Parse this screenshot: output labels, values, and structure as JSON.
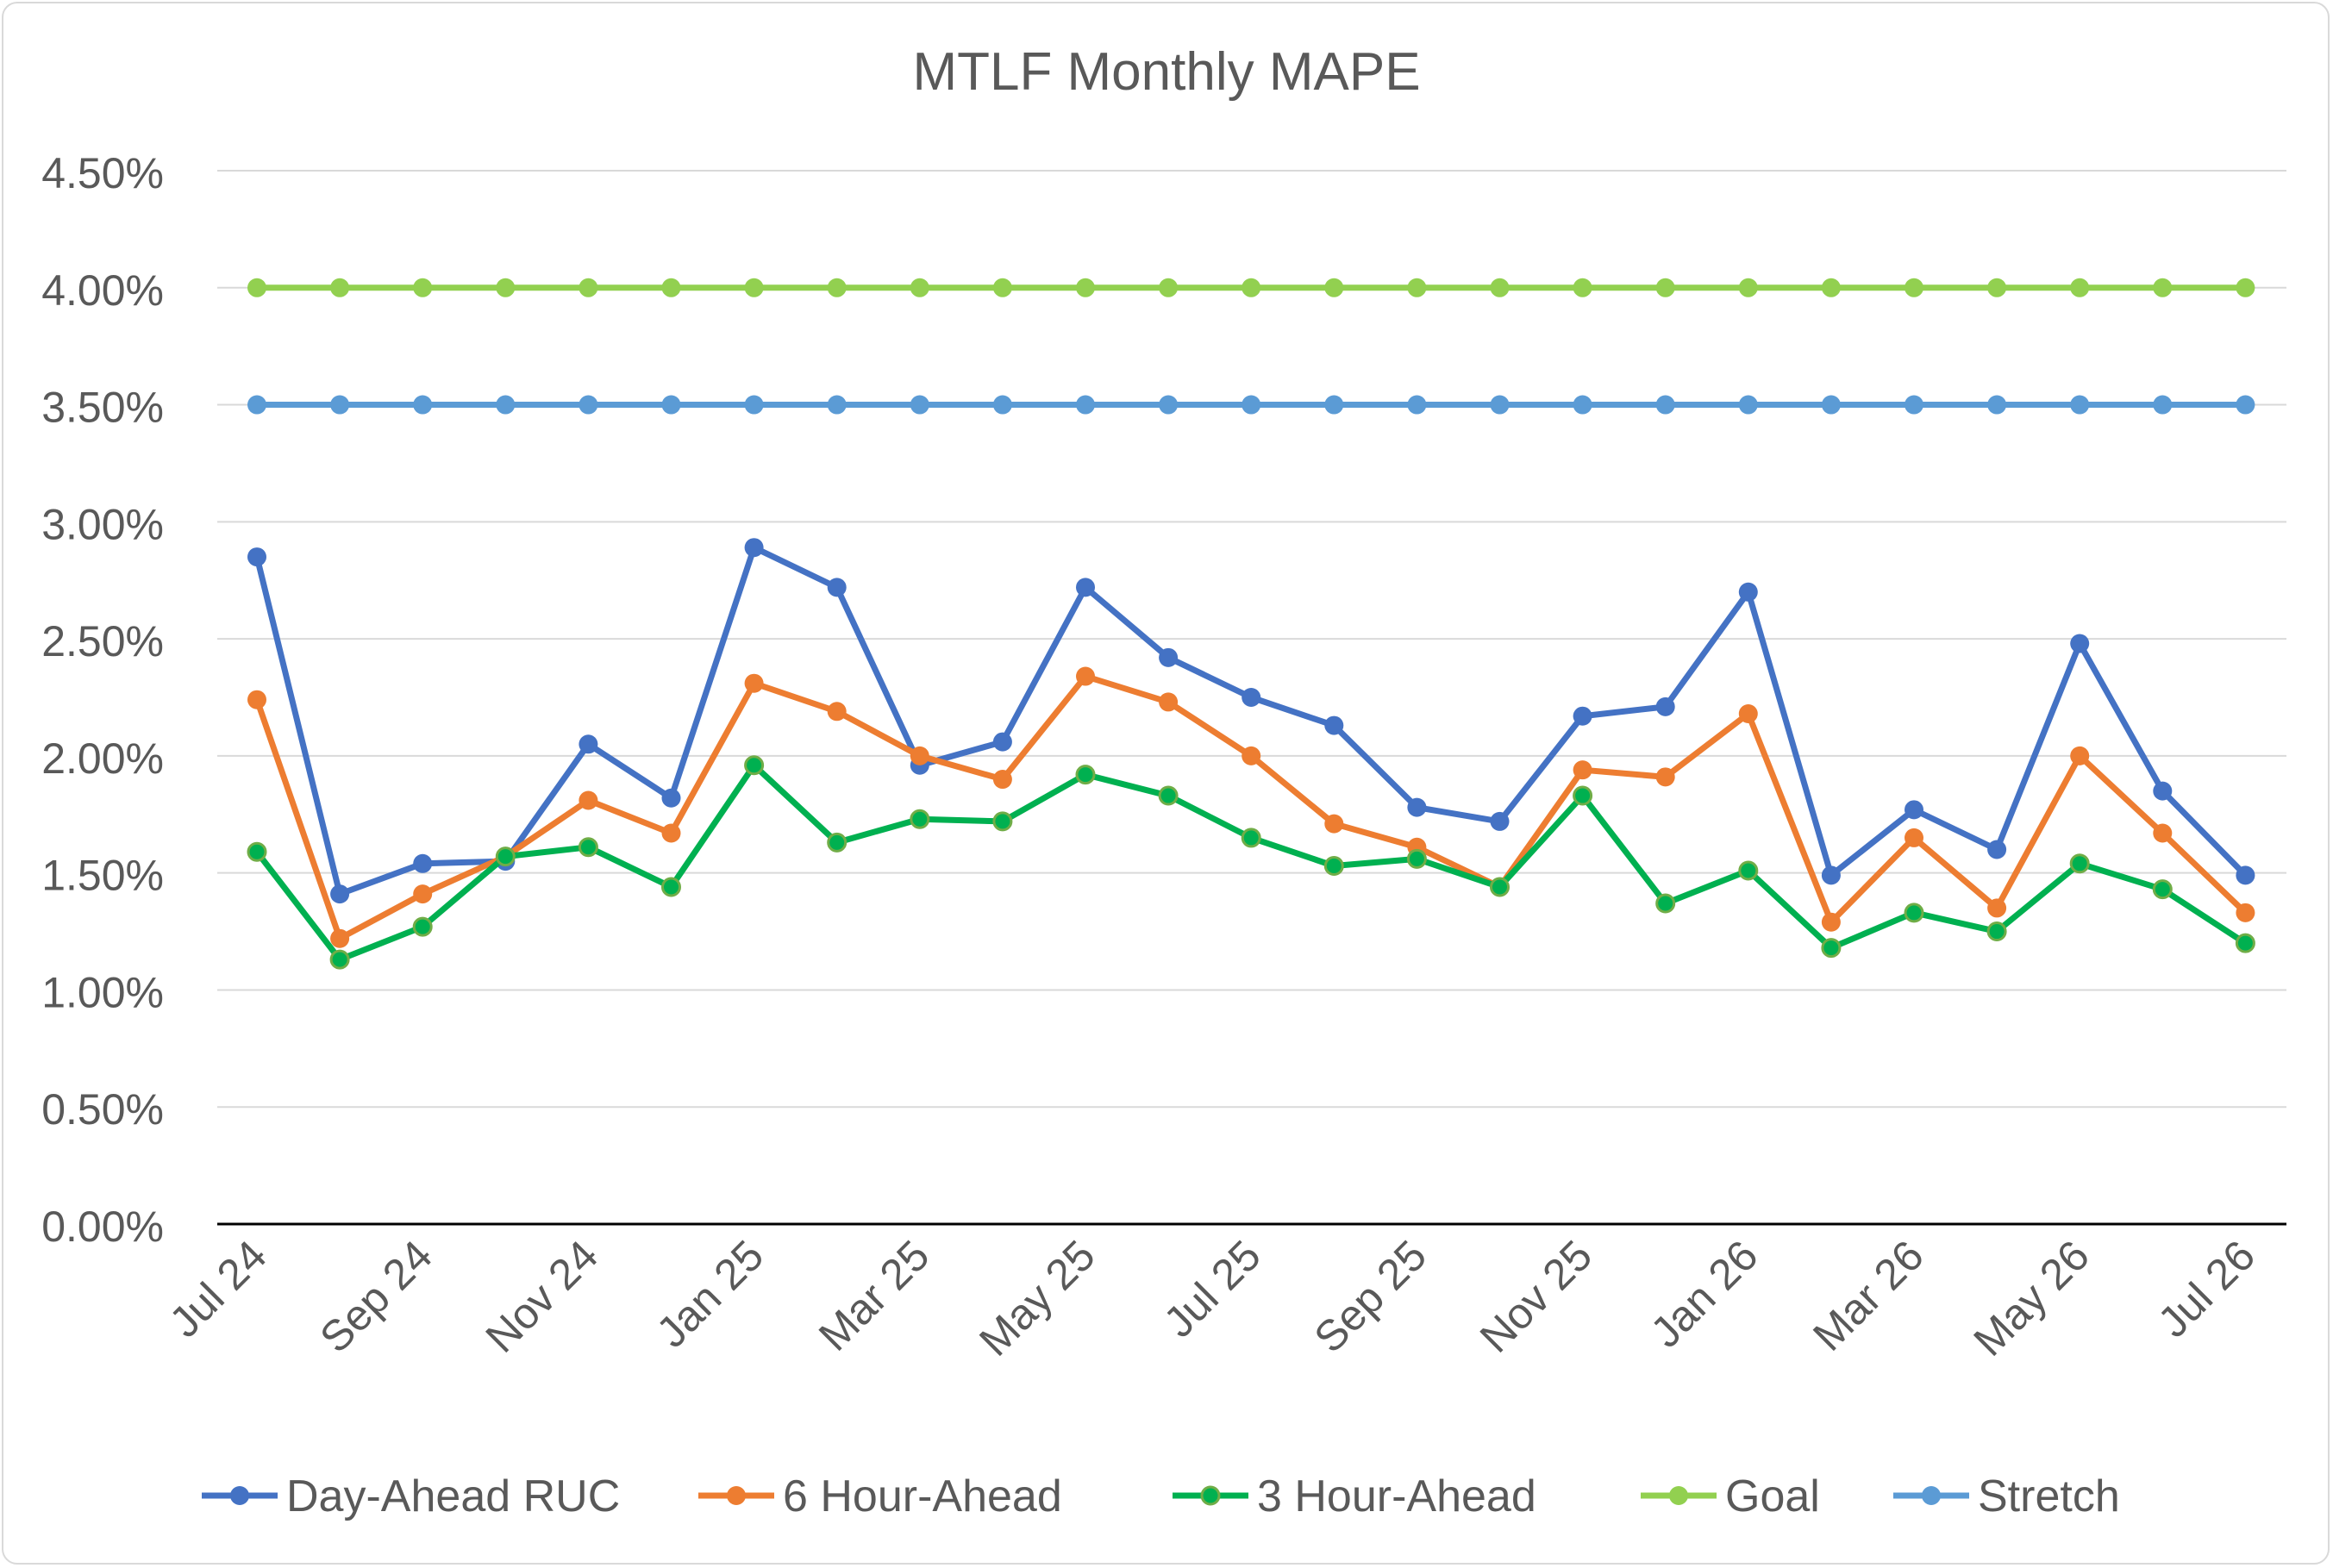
{
  "chart_data": {
    "type": "line",
    "title": "MTLF Monthly MAPE",
    "xlabel": "",
    "ylabel": "",
    "ylim": [
      0,
      0.045
    ],
    "y_ticks": [
      0,
      0.005,
      0.01,
      0.015,
      0.02,
      0.025,
      0.03,
      0.035,
      0.04,
      0.045
    ],
    "y_tick_labels": [
      "0.00%",
      "0.50%",
      "1.00%",
      "1.50%",
      "2.00%",
      "2.50%",
      "3.00%",
      "3.50%",
      "4.00%",
      "4.50%"
    ],
    "categories": [
      "Jul 24",
      "Aug 24",
      "Sep 24",
      "Oct 24",
      "Nov 24",
      "Dec 24",
      "Jan 25",
      "Feb 25",
      "Mar 25",
      "Apr 25",
      "May 25",
      "Jun 25",
      "Jul 25",
      "Aug 25",
      "Sep 25",
      "Oct 25",
      "Nov 25",
      "Dec 25",
      "Jan 26",
      "Feb 26",
      "Mar 26",
      "Apr 26",
      "May 26",
      "Jun 26",
      "Jul 26"
    ],
    "x_tick_labels": [
      "Jul 24",
      "",
      "Sep 24",
      "",
      "Nov 24",
      "",
      "Jan 25",
      "",
      "Mar 25",
      "",
      "May 25",
      "",
      "Jul 25",
      "",
      "Sep 25",
      "",
      "Nov 25",
      "",
      "Jan 26",
      "",
      "Mar 26",
      "",
      "May 26",
      "",
      "Jul 26"
    ],
    "grid": true,
    "legend_position": "bottom",
    "series": [
      {
        "name": "Day-Ahead RUC",
        "color": "#4472c4",
        "values": [
          0.0285,
          0.0141,
          0.0154,
          0.0155,
          0.0205,
          0.0182,
          0.0289,
          0.0272,
          0.0196,
          0.0206,
          0.0272,
          0.0242,
          0.0225,
          0.0213,
          0.0178,
          0.0172,
          0.0217,
          0.0221,
          0.027,
          0.0149,
          0.0177,
          0.016,
          0.0248,
          0.0185,
          0.0149
        ]
      },
      {
        "name": "6 Hour-Ahead",
        "color": "#ed7d31",
        "values": [
          0.0224,
          0.0122,
          0.0141,
          0.0157,
          0.0181,
          0.0167,
          0.0231,
          0.0219,
          0.02,
          0.019,
          0.0234,
          0.0223,
          0.02,
          0.0171,
          0.0161,
          0.0144,
          0.0194,
          0.0191,
          0.0218,
          0.0129,
          0.0165,
          0.0135,
          0.02,
          0.0167,
          0.0133
        ]
      },
      {
        "name": "3 Hour-Ahead",
        "color": "#00b050",
        "values": [
          0.0159,
          0.0113,
          0.0127,
          0.0157,
          0.0161,
          0.0144,
          0.0196,
          0.0163,
          0.0173,
          0.0172,
          0.0192,
          0.0183,
          0.0165,
          0.0153,
          0.0156,
          0.0144,
          0.0183,
          0.0137,
          0.0151,
          0.0118,
          0.0133,
          0.0125,
          0.0154,
          0.0143,
          0.012
        ]
      },
      {
        "name": "Goal",
        "color": "#92d050",
        "values": [
          0.04,
          0.04,
          0.04,
          0.04,
          0.04,
          0.04,
          0.04,
          0.04,
          0.04,
          0.04,
          0.04,
          0.04,
          0.04,
          0.04,
          0.04,
          0.04,
          0.04,
          0.04,
          0.04,
          0.04,
          0.04,
          0.04,
          0.04,
          0.04,
          0.04
        ]
      },
      {
        "name": "Stretch",
        "color": "#5b9bd5",
        "values": [
          0.035,
          0.035,
          0.035,
          0.035,
          0.035,
          0.035,
          0.035,
          0.035,
          0.035,
          0.035,
          0.035,
          0.035,
          0.035,
          0.035,
          0.035,
          0.035,
          0.035,
          0.035,
          0.035,
          0.035,
          0.035,
          0.035,
          0.035,
          0.035,
          0.035
        ]
      }
    ]
  }
}
